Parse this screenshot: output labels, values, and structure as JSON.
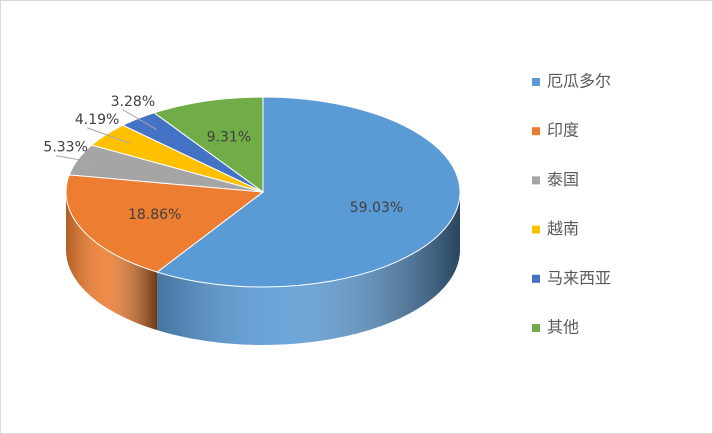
{
  "chart_data": {
    "type": "pie",
    "categories": [
      "厄瓜多尔",
      "印度",
      "泰国",
      "越南",
      "马来西亚",
      "其他"
    ],
    "values": [
      59.03,
      18.86,
      5.33,
      4.19,
      3.28,
      9.31
    ],
    "value_labels": [
      "59.03%",
      "18.86%",
      "5.33%",
      "4.19%",
      "3.28%",
      "9.31%"
    ],
    "colors": [
      "#5b9bd5",
      "#ed7d31",
      "#a5a5a5",
      "#ffc000",
      "#4472c4",
      "#70ad47"
    ],
    "legend": "right"
  }
}
